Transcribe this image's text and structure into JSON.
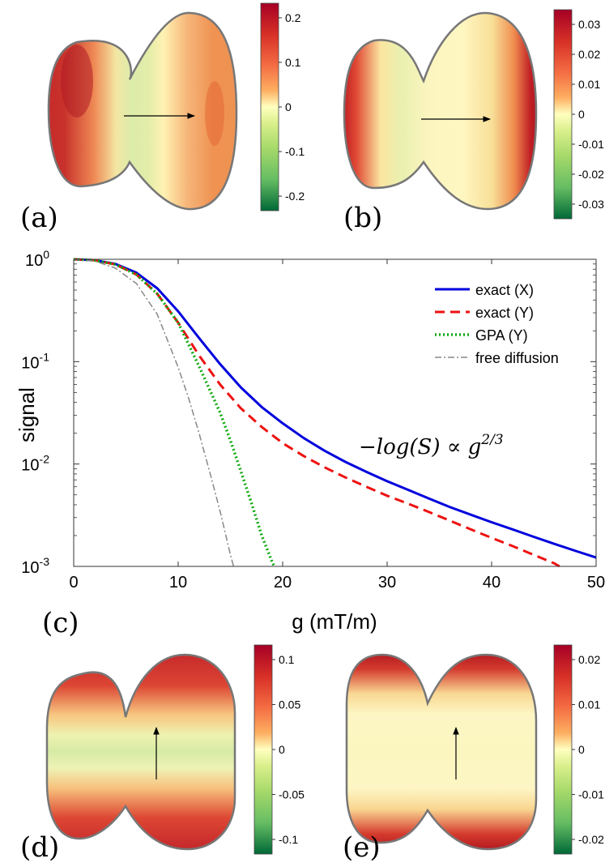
{
  "panels": {
    "a": {
      "label": "(a)",
      "colorbar_ticks": [
        "0.2",
        "0.1",
        "0",
        "-0.1",
        "-0.2"
      ],
      "arrow_direction": "x"
    },
    "b": {
      "label": "(b)",
      "colorbar_ticks": [
        "0.03",
        "0.02",
        "0.01",
        "0",
        "-0.01",
        "-0.02",
        "-0.03"
      ],
      "arrow_direction": "x"
    },
    "d": {
      "label": "(d)",
      "colorbar_ticks": [
        "0.1",
        "0.05",
        "0",
        "-0.05",
        "-0.1"
      ],
      "arrow_direction": "y"
    },
    "e": {
      "label": "(e)",
      "colorbar_ticks": [
        "0.02",
        "0.01",
        "0",
        "-0.01",
        "-0.02"
      ],
      "arrow_direction": "y"
    },
    "c": {
      "label": "(c)"
    }
  },
  "colors": {
    "exact_x": "#0000dd",
    "exact_y": "#ee1111",
    "gpa_y": "#11aa11",
    "free": "#888888",
    "shape_outline": "#777777"
  },
  "chart_data": {
    "type": "line",
    "title": "",
    "xlabel": "g (mT/m)",
    "ylabel": "signal",
    "xlim": [
      0,
      50
    ],
    "ylim": [
      0.001,
      1
    ],
    "yscale": "log",
    "x_ticks": [
      "0",
      "10",
      "20",
      "30",
      "40",
      "50"
    ],
    "y_ticks": [
      {
        "base": "10",
        "exp": "0"
      },
      {
        "base": "10",
        "exp": "-1"
      },
      {
        "base": "10",
        "exp": "-2"
      },
      {
        "base": "10",
        "exp": "-3"
      }
    ],
    "legend_position": "top-right",
    "annotation": "−log(S) ∝ g",
    "annotation_exponent": "2/3",
    "series": [
      {
        "name": "exact (X)",
        "style": "solid",
        "x": [
          0,
          2,
          4,
          6,
          8,
          10,
          12,
          14,
          16,
          18,
          20,
          22,
          24,
          26,
          28,
          30,
          32,
          34,
          36,
          38,
          40,
          42,
          44,
          46,
          48,
          50
        ],
        "y": [
          1.0,
          0.98,
          0.9,
          0.74,
          0.52,
          0.31,
          0.17,
          0.095,
          0.056,
          0.036,
          0.025,
          0.018,
          0.0135,
          0.0105,
          0.0084,
          0.0068,
          0.0056,
          0.0046,
          0.0038,
          0.0032,
          0.0027,
          0.0023,
          0.00195,
          0.00166,
          0.00142,
          0.00122
        ]
      },
      {
        "name": "exact (Y)",
        "style": "dashed",
        "x": [
          0,
          2,
          4,
          6,
          8,
          10,
          12,
          14,
          16,
          18,
          20,
          22,
          24,
          26,
          28,
          30,
          32,
          34,
          36,
          38,
          40,
          42,
          44,
          46,
          46.5
        ],
        "y": [
          1.0,
          0.98,
          0.89,
          0.71,
          0.46,
          0.24,
          0.115,
          0.06,
          0.035,
          0.023,
          0.016,
          0.012,
          0.0093,
          0.0074,
          0.006,
          0.0049,
          0.0041,
          0.0034,
          0.0028,
          0.0023,
          0.0019,
          0.00158,
          0.0013,
          0.00107,
          0.001
        ]
      },
      {
        "name": "GPA (Y)",
        "style": "dotted",
        "x": [
          0,
          2,
          4,
          6,
          8,
          10,
          12,
          14,
          15,
          16,
          17,
          18,
          19,
          19.2
        ],
        "y": [
          1.0,
          0.98,
          0.89,
          0.71,
          0.46,
          0.24,
          0.09,
          0.032,
          0.017,
          0.0085,
          0.0042,
          0.002,
          0.0011,
          0.001
        ]
      },
      {
        "name": "free diffusion",
        "style": "dashdot",
        "x": [
          0,
          2,
          4,
          6,
          8,
          10,
          11,
          12,
          13,
          14,
          15,
          15.3
        ],
        "y": [
          1.0,
          0.96,
          0.82,
          0.58,
          0.29,
          0.088,
          0.044,
          0.02,
          0.0085,
          0.0035,
          0.0013,
          0.001
        ]
      }
    ]
  }
}
